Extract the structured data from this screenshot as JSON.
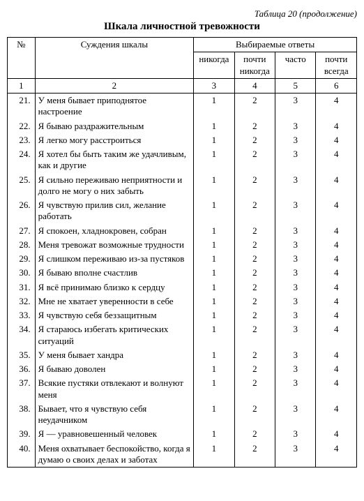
{
  "meta": {
    "caption": "Таблица 20 (продолжение)",
    "title": "Шкала личностной тревожности"
  },
  "headers": {
    "num": "№",
    "judgement": "Суждения шкалы",
    "answers_group": "Выбираемые ответы",
    "opt1": "никогда",
    "opt2": "почти никогда",
    "opt3": "часто",
    "opt4": "почти всегда",
    "n1": "1",
    "n2": "2",
    "n3": "3",
    "n4": "4",
    "n5": "5",
    "n6": "6"
  },
  "rows": [
    {
      "n": "21.",
      "t": "У меня бывает приподнятое настроение",
      "a": [
        "1",
        "2",
        "3",
        "4"
      ]
    },
    {
      "n": "22.",
      "t": "Я бываю раздражительным",
      "a": [
        "1",
        "2",
        "3",
        "4"
      ]
    },
    {
      "n": "23.",
      "t": "Я легко могу расстроиться",
      "a": [
        "1",
        "2",
        "3",
        "4"
      ]
    },
    {
      "n": "24.",
      "t": "Я хотел бы быть таким же удачливым, как и другие",
      "a": [
        "1",
        "2",
        "3",
        "4"
      ]
    },
    {
      "n": "25.",
      "t": "Я сильно переживаю непри­ятности и долго не могу о них забыть",
      "a": [
        "1",
        "2",
        "3",
        "4"
      ]
    },
    {
      "n": "26.",
      "t": "Я чувствую прилив сил, желание работать",
      "a": [
        "1",
        "2",
        "3",
        "4"
      ]
    },
    {
      "n": "27.",
      "t": "Я спокоен, хладнокровен, собран",
      "a": [
        "1",
        "2",
        "3",
        "4"
      ]
    },
    {
      "n": "28.",
      "t": "Меня тревожат возможные трудности",
      "a": [
        "1",
        "2",
        "3",
        "4"
      ]
    },
    {
      "n": "29.",
      "t": "Я слишком переживаю из-за пустяков",
      "a": [
        "1",
        "2",
        "3",
        "4"
      ]
    },
    {
      "n": "30.",
      "t": "Я бываю вполне счастлив",
      "a": [
        "1",
        "2",
        "3",
        "4"
      ]
    },
    {
      "n": "31.",
      "t": "Я всё принимаю близко к сердцу",
      "a": [
        "1",
        "2",
        "3",
        "4"
      ]
    },
    {
      "n": "32.",
      "t": "Мне не хватает уверенности в себе",
      "a": [
        "1",
        "2",
        "3",
        "4"
      ]
    },
    {
      "n": "33.",
      "t": "Я чувствую себя безза­щитным",
      "a": [
        "1",
        "2",
        "3",
        "4"
      ]
    },
    {
      "n": "34.",
      "t": "Я стараюсь избегать критических ситуаций",
      "a": [
        "1",
        "2",
        "3",
        "4"
      ]
    },
    {
      "n": "35.",
      "t": "У меня бывает хандра",
      "a": [
        "1",
        "2",
        "3",
        "4"
      ]
    },
    {
      "n": "36.",
      "t": "Я бываю доволен",
      "a": [
        "1",
        "2",
        "3",
        "4"
      ]
    },
    {
      "n": "37.",
      "t": "Всякие пустяки отвлекают и волнуют меня",
      "a": [
        "1",
        "2",
        "3",
        "4"
      ]
    },
    {
      "n": "38.",
      "t": "Бывает, что я чувствую себя неудачником",
      "a": [
        "1",
        "2",
        "3",
        "4"
      ]
    },
    {
      "n": "39.",
      "t": "Я — уравновешенный человек",
      "a": [
        "1",
        "2",
        "3",
        "4"
      ]
    },
    {
      "n": "40.",
      "t": "Меня охватывает беспокой­ство, когда я думаю о своих делах и заботах",
      "a": [
        "1",
        "2",
        "3",
        "4"
      ]
    }
  ]
}
